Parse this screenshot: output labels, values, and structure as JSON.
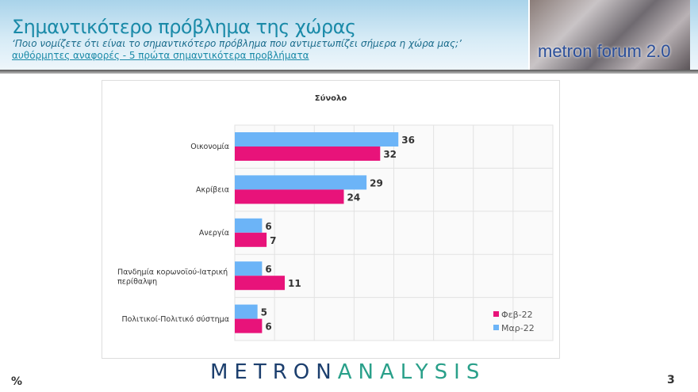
{
  "header": {
    "title": "Σημαντικότερο πρόβλημα της χώρας",
    "question": "‘Ποιο νομίζετε ότι  είναι το σημαντικότερο πρόβλημα που αντιμετωπίζει σήμερα η χώρα μας;’",
    "note": "αυθόρμητες αναφορές - 5 πρώτα σημαντικότερα προβλήματα",
    "logo_text": "metron forum 2.0"
  },
  "footer": {
    "brand_a": "METRON",
    "brand_b": "ANALYSIS",
    "unit": "%",
    "page": "3"
  },
  "chart_data": {
    "type": "bar",
    "orientation": "horizontal",
    "title": "Σύνολο",
    "categories": [
      "Οικονομία",
      "Ακρίβεια",
      "Ανεργία",
      "Πανδημία κορωνοϊού-Ιατρική περίθαλψη",
      "Πολιτικοί-Πολιτικό σύστημα"
    ],
    "series": [
      {
        "name": "Μαρ-22",
        "color": "#6cb4f7",
        "values": [
          36,
          29,
          6,
          6,
          5
        ]
      },
      {
        "name": "Φεβ-22",
        "color": "#e8137a",
        "values": [
          32,
          24,
          7,
          11,
          6
        ]
      }
    ],
    "xlim": [
      0,
      70
    ],
    "grid": true,
    "legend": "bottom-right",
    "legend_order": [
      "Φεβ-22",
      "Μαρ-22"
    ]
  }
}
